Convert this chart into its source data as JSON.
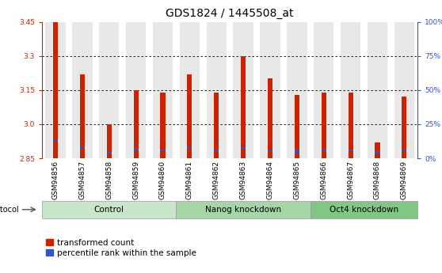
{
  "title": "GDS1824 / 1445508_at",
  "samples": [
    "GSM94856",
    "GSM94857",
    "GSM94858",
    "GSM94859",
    "GSM94860",
    "GSM94861",
    "GSM94862",
    "GSM94863",
    "GSM94864",
    "GSM94865",
    "GSM94866",
    "GSM94867",
    "GSM94868",
    "GSM94869"
  ],
  "red_values": [
    3.45,
    3.22,
    3.0,
    3.15,
    3.14,
    3.22,
    3.14,
    3.3,
    3.2,
    3.13,
    3.14,
    3.14,
    2.92,
    3.12
  ],
  "blue_values": [
    2.935,
    2.895,
    2.875,
    2.89,
    2.885,
    2.895,
    2.885,
    2.895,
    2.882,
    2.88,
    2.882,
    2.885,
    2.878,
    2.885
  ],
  "base": 2.85,
  "ymin": 2.85,
  "ymax": 3.45,
  "yticks_left": [
    2.85,
    3.0,
    3.15,
    3.3,
    3.45
  ],
  "yticks_right_vals": [
    0,
    25,
    50,
    75,
    100
  ],
  "yticks_right_pos": [
    2.85,
    3.0,
    3.15,
    3.3,
    3.45
  ],
  "groups": [
    {
      "label": "Control",
      "start": 0,
      "end": 4
    },
    {
      "label": "Nanog knockdown",
      "start": 5,
      "end": 9
    },
    {
      "label": "Oct4 knockdown",
      "start": 10,
      "end": 13
    }
  ],
  "group_colors": [
    "#c8e6c9",
    "#a5d6a7",
    "#81c784"
  ],
  "protocol_label": "protocol",
  "red_color": "#cc2200",
  "blue_color": "#3355cc",
  "bar_bg_color": "#e8e8e8",
  "bar_width": 0.18,
  "bg_bar_width": 0.75,
  "legend_red": "transformed count",
  "legend_blue": "percentile rank within the sample",
  "title_fontsize": 10,
  "tick_fontsize": 6.5,
  "group_fontsize": 7.5,
  "axis_color_left": "#cc2200",
  "axis_color_right": "#3355cc"
}
